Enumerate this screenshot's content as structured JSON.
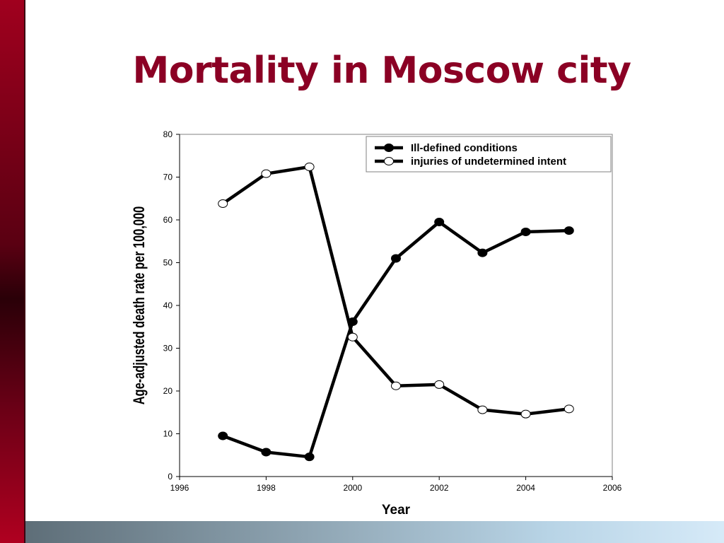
{
  "slide": {
    "title": "Mortality in Moscow city"
  },
  "colors": {
    "title": "#8b0024",
    "left_bar": "#7a0018",
    "bottom_bar_start": "#5e6e78",
    "bottom_bar_end": "#d6eaf8",
    "series_line": "#000000",
    "hollow_marker_fill": "#ffffff"
  },
  "chart_data": {
    "type": "line",
    "title": "",
    "xlabel": "Year",
    "ylabel": "Age-adjusted death rate per 100,000",
    "xlim": [
      1996,
      2006
    ],
    "ylim": [
      0,
      80
    ],
    "xticks": [
      1996,
      1998,
      2000,
      2002,
      2004,
      2006
    ],
    "yticks": [
      0,
      10,
      20,
      30,
      40,
      50,
      60,
      70,
      80
    ],
    "grid": false,
    "legend_position": "top-right",
    "x": [
      1997,
      1998,
      1999,
      2000,
      2001,
      2002,
      2003,
      2004,
      2005
    ],
    "series": [
      {
        "name": "Ill-defined conditions",
        "marker": "filled-circle",
        "values": [
          9.5,
          5.7,
          4.6,
          36.2,
          51.0,
          59.5,
          52.3,
          57.2,
          57.5
        ]
      },
      {
        "name": "injuries of undetermined intent",
        "marker": "hollow-circle",
        "values": [
          63.8,
          70.8,
          72.4,
          32.6,
          21.2,
          21.5,
          15.6,
          14.6,
          15.8
        ]
      }
    ]
  }
}
